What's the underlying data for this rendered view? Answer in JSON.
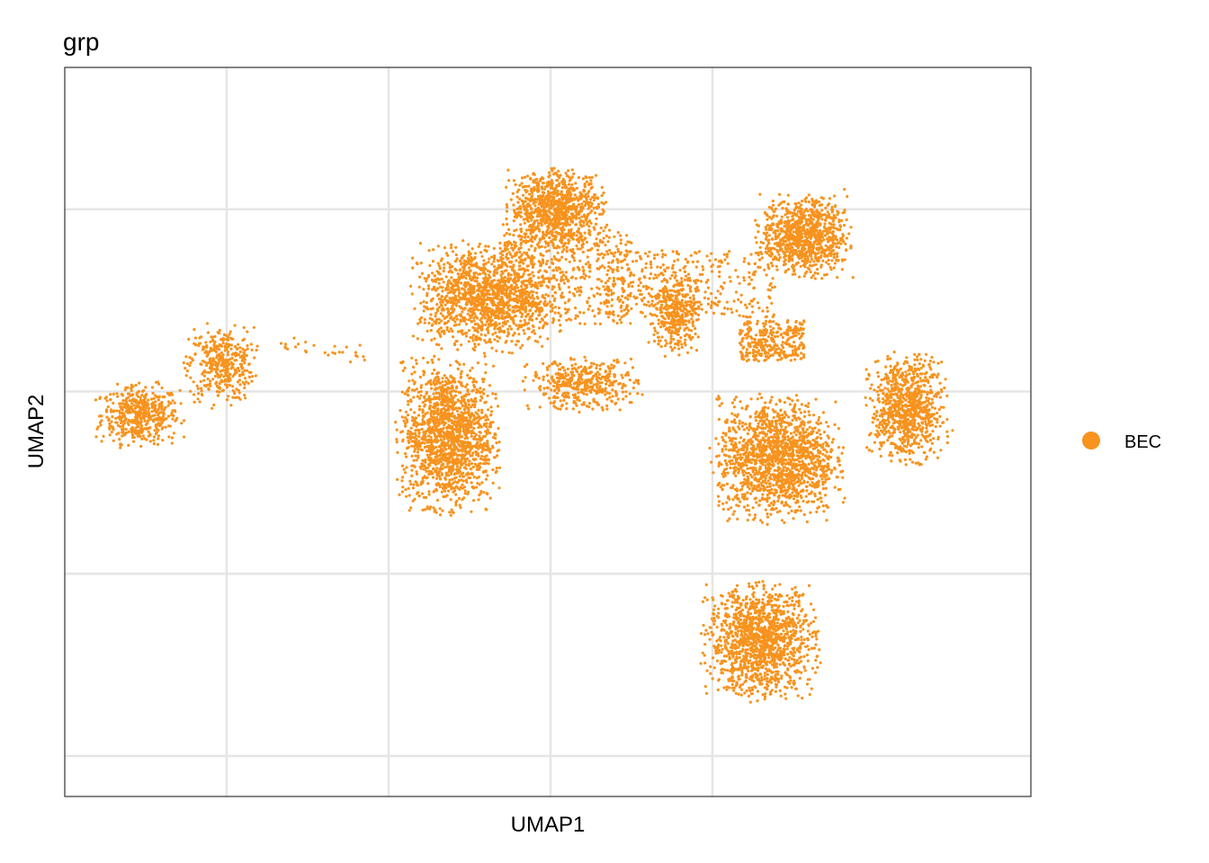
{
  "chart_data": {
    "type": "scatter",
    "title": "grp",
    "xlabel": "UMAP1",
    "ylabel": "UMAP2",
    "grid": true,
    "x_ticks_labeled": false,
    "y_ticks_labeled": false,
    "legend": {
      "placement": "right",
      "entries": [
        {
          "label": "BEC",
          "color": "#F7931E"
        }
      ]
    },
    "series": [
      {
        "name": "BEC",
        "color": "#F7931E",
        "clusters": [
          {
            "center": [
              -7.6,
              0.85
            ],
            "spread": [
              0.6,
              0.35
            ],
            "points": 480,
            "shape": "blob"
          },
          {
            "center": [
              -6.1,
              1.6
            ],
            "spread": [
              0.5,
              0.45
            ],
            "points": 380,
            "shape": "blob"
          },
          {
            "center": [
              -4.2,
              1.8
            ],
            "spread": [
              0.8,
              0.08
            ],
            "points": 28,
            "shape": "bridge"
          },
          {
            "center": [
              -1.9,
              0.55
            ],
            "spread": [
              0.7,
              0.85
            ],
            "points": 1500,
            "shape": "blob"
          },
          {
            "center": [
              -1.2,
              2.6
            ],
            "spread": [
              1.0,
              0.6
            ],
            "points": 1300,
            "shape": "blob"
          },
          {
            "center": [
              0.1,
              3.9
            ],
            "spread": [
              0.7,
              0.45
            ],
            "points": 900,
            "shape": "blob"
          },
          {
            "center": [
              0.6,
              1.3
            ],
            "spread": [
              0.8,
              0.3
            ],
            "points": 420,
            "shape": "blob"
          },
          {
            "center": [
              0.3,
              2.9
            ],
            "spread": [
              1.2,
              0.7
            ],
            "points": 500,
            "shape": "sparse"
          },
          {
            "center": [
              2.6,
              2.8
            ],
            "spread": [
              1.6,
              0.5
            ],
            "points": 350,
            "shape": "sparse"
          },
          {
            "center": [
              2.3,
              2.35
            ],
            "spread": [
              0.35,
              0.5
            ],
            "points": 350,
            "shape": "blob"
          },
          {
            "center": [
              4.7,
              3.5
            ],
            "spread": [
              0.65,
              0.45
            ],
            "points": 900,
            "shape": "blob"
          },
          {
            "center": [
              4.2,
              0.2
            ],
            "spread": [
              0.9,
              0.7
            ],
            "points": 1500,
            "shape": "blob"
          },
          {
            "center": [
              6.6,
              0.95
            ],
            "spread": [
              0.55,
              0.6
            ],
            "points": 850,
            "shape": "blob"
          },
          {
            "center": [
              4.1,
              1.95
            ],
            "spread": [
              0.6,
              0.3
            ],
            "points": 300,
            "shape": "sparse"
          },
          {
            "center": [
              3.9,
              -2.5
            ],
            "spread": [
              0.8,
              0.65
            ],
            "points": 1300,
            "shape": "blob"
          }
        ]
      }
    ],
    "xlim": [
      -9.0,
      8.9
    ],
    "ylim": [
      -4.8,
      6.0
    ]
  }
}
